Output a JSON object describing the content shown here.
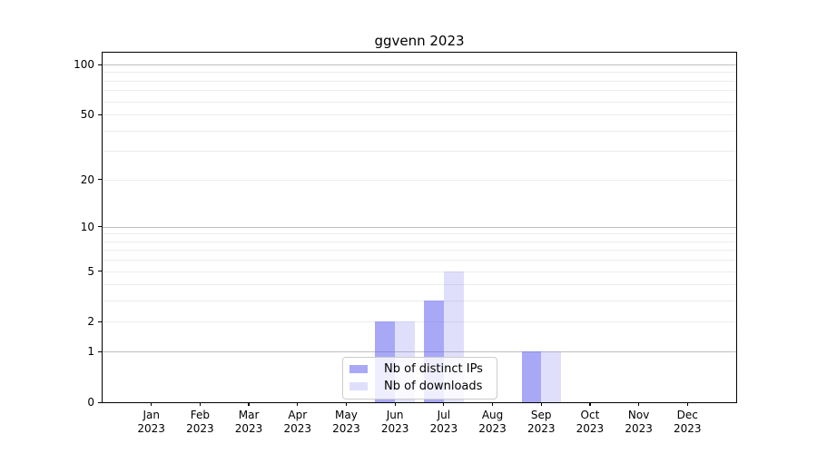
{
  "title": "ggvenn 2023",
  "chart_data": {
    "type": "bar",
    "title": "ggvenn 2023",
    "categories": [
      "Jan",
      "Feb",
      "Mar",
      "Apr",
      "May",
      "Jun",
      "Jul",
      "Aug",
      "Sep",
      "Oct",
      "Nov",
      "Dec"
    ],
    "year_label": "2023",
    "series": [
      {
        "name": "Nb of distinct IPs",
        "values": [
          0,
          0,
          0,
          0,
          0,
          2,
          3,
          0,
          1,
          0,
          0,
          0
        ],
        "color": "rgba(110,110,242,0.60)"
      },
      {
        "name": "Nb of downloads",
        "values": [
          0,
          0,
          0,
          0,
          0,
          2,
          5,
          0,
          1,
          0,
          0,
          0
        ],
        "color": "rgba(110,110,242,0.22)"
      }
    ],
    "xlabel": "",
    "ylabel": "",
    "scale": "log1p",
    "ylim": [
      0,
      118
    ],
    "y_tick_labels": [
      "0",
      "1",
      "2",
      "5",
      "10",
      "20",
      "50",
      "100"
    ],
    "y_tick_values": [
      0,
      1,
      2,
      5,
      10,
      20,
      50,
      100
    ],
    "y_major_grid_values": [
      1,
      10,
      100
    ],
    "y_minor_grid_values": [
      2,
      3,
      4,
      5,
      6,
      7,
      8,
      9,
      20,
      30,
      40,
      50,
      60,
      70,
      80,
      90
    ],
    "grid": true,
    "legend_position": "inside-bottom-center"
  },
  "colors": {
    "background": "#ffffff",
    "bar_distinct_ips": "rgba(110,110,242,0.60)",
    "bar_downloads": "rgba(110,110,242,0.22)",
    "grid_major": "#bfbfbf",
    "grid_minor": "#ececec",
    "axis": "#000000",
    "legend_border": "#cccccc"
  }
}
